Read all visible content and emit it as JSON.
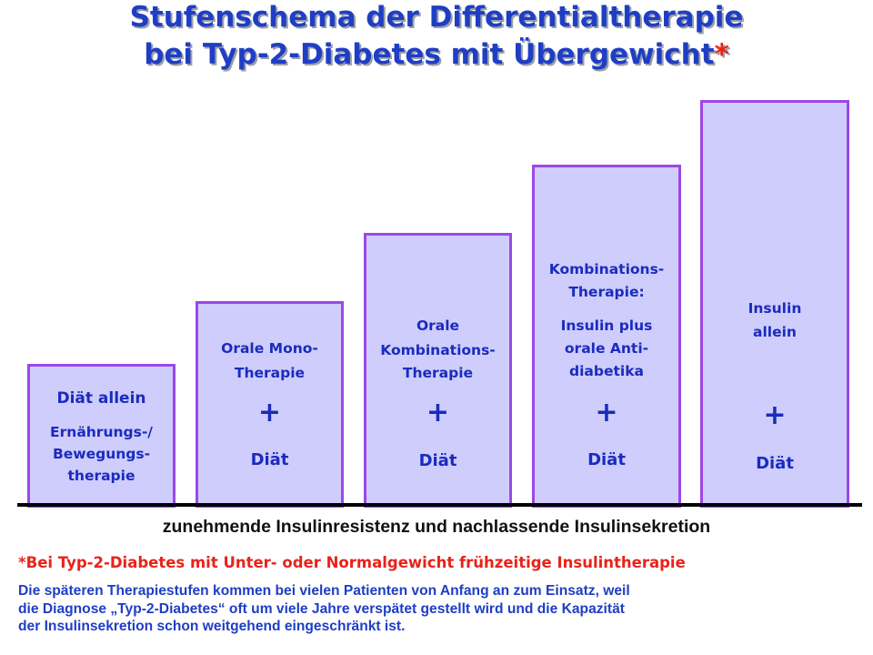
{
  "title": {
    "line1": "Stufenschema der Differentialtherapie",
    "line2": "bei Typ-2-Diabetes mit Übergewicht",
    "asterisk": "*"
  },
  "steps": [
    {
      "heading": "Diät allein",
      "lines": [
        "Ernährungs-/",
        "Bewegungs-",
        "therapie"
      ]
    },
    {
      "lines": [
        "Orale Mono-",
        "Therapie"
      ],
      "plus": "+",
      "diet": "Diät"
    },
    {
      "lines": [
        "Orale",
        "Kombinations-",
        "Therapie"
      ],
      "plus": "+",
      "diet": "Diät"
    },
    {
      "lines": [
        "Kombinations-",
        "Therapie:",
        "Insulin plus",
        "orale Anti-",
        "diabetika"
      ],
      "plus": "+",
      "diet": "Diät"
    },
    {
      "lines": [
        "Insulin",
        "allein"
      ],
      "plus": "+",
      "diet": "Diät"
    }
  ],
  "axis_label": "zunehmende Insulinresistenz und nachlassende Insulinsekretion",
  "footnote": "*Bei Typ-2-Diabetes mit Unter- oder Normalgewicht frühzeitige Insulintherapie",
  "note_lines": [
    "Die späteren Therapiestufen kommen bei vielen Patienten von Anfang an zum Einsatz, weil",
    "die Diagnose „Typ-2-Diabetes“ oft um viele Jahre verspätet gestellt wird und die Kapazität",
    "der Insulinsekretion  schon weitgehend eingeschränkt ist."
  ],
  "colors": {
    "title": "#1f3ec4",
    "step_fill": "#cfcdfb",
    "step_border": "#9b48e6",
    "step_text": "#1a2bbf",
    "accent_red": "#e8231a",
    "baseline": "#000000"
  }
}
